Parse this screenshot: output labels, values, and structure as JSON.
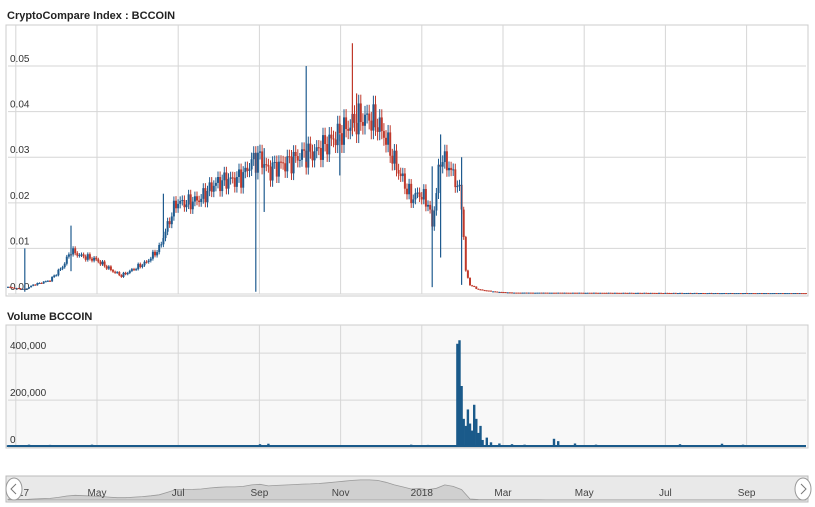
{
  "chart_data": {
    "type": "candlestick",
    "title": "CryptoCompare Index : BCCOIN",
    "volume_title": "Volume BCCOIN",
    "price_ylim": [
      0,
      0.059
    ],
    "price_ticks": [
      {
        "v": 0,
        "label": "0.00"
      },
      {
        "v": 0.01,
        "label": "0.01"
      },
      {
        "v": 0.02,
        "label": "0.02"
      },
      {
        "v": 0.03,
        "label": "0.03"
      },
      {
        "v": 0.04,
        "label": "0.04"
      },
      {
        "v": 0.05,
        "label": "0.05"
      }
    ],
    "volume_ylim": [
      0,
      520000
    ],
    "volume_ticks": [
      {
        "v": 0,
        "label": "0"
      },
      {
        "v": 200000,
        "label": "200,000"
      },
      {
        "v": 400000,
        "label": "400,000"
      }
    ],
    "x_ticks": [
      "May",
      "Jul",
      "Sep",
      "Nov",
      "2018",
      "Mar",
      "May",
      "Jul",
      "Sep"
    ],
    "x_clipped_label": "17",
    "grid": true,
    "up_color": "#1f5b8f",
    "down_color": "#c0392b",
    "volume_color": "#1a5a8a",
    "navigator_fill": "#d8d8d8",
    "price_series": [
      {
        "x": 0,
        "y": 0.0015
      },
      {
        "x": 4,
        "y": 0.001
      },
      {
        "x": 6,
        "y": 0.002
      },
      {
        "x": 10,
        "y": 0.003
      },
      {
        "x": 13,
        "y": 0.006
      },
      {
        "x": 15,
        "y": 0.0095
      },
      {
        "x": 17,
        "y": 0.0085
      },
      {
        "x": 21,
        "y": 0.0075
      },
      {
        "x": 25,
        "y": 0.005
      },
      {
        "x": 27,
        "y": 0.004
      },
      {
        "x": 30,
        "y": 0.0055
      },
      {
        "x": 33,
        "y": 0.007
      },
      {
        "x": 36,
        "y": 0.01
      },
      {
        "x": 38,
        "y": 0.015
      },
      {
        "x": 40,
        "y": 0.02
      },
      {
        "x": 43,
        "y": 0.02
      },
      {
        "x": 46,
        "y": 0.021
      },
      {
        "x": 49,
        "y": 0.024
      },
      {
        "x": 52,
        "y": 0.025
      },
      {
        "x": 54,
        "y": 0.025
      },
      {
        "x": 56,
        "y": 0.026
      },
      {
        "x": 58,
        "y": 0.029
      },
      {
        "x": 60,
        "y": 0.03
      },
      {
        "x": 62,
        "y": 0.027
      },
      {
        "x": 64,
        "y": 0.028
      },
      {
        "x": 67,
        "y": 0.029
      },
      {
        "x": 70,
        "y": 0.0305
      },
      {
        "x": 73,
        "y": 0.031
      },
      {
        "x": 76,
        "y": 0.033
      },
      {
        "x": 78,
        "y": 0.0345
      },
      {
        "x": 80,
        "y": 0.036
      },
      {
        "x": 82,
        "y": 0.0375
      },
      {
        "x": 84,
        "y": 0.0385
      },
      {
        "x": 86,
        "y": 0.0385
      },
      {
        "x": 88,
        "y": 0.0375
      },
      {
        "x": 90,
        "y": 0.034
      },
      {
        "x": 92,
        "y": 0.029
      },
      {
        "x": 94,
        "y": 0.025
      },
      {
        "x": 96,
        "y": 0.021
      },
      {
        "x": 98,
        "y": 0.022
      },
      {
        "x": 100,
        "y": 0.02
      },
      {
        "x": 101,
        "y": 0.015
      },
      {
        "x": 103,
        "y": 0.03
      },
      {
        "x": 105,
        "y": 0.028
      },
      {
        "x": 107,
        "y": 0.024
      },
      {
        "x": 108,
        "y": 0.02
      },
      {
        "x": 109,
        "y": 0.005
      },
      {
        "x": 110,
        "y": 0.002
      },
      {
        "x": 112,
        "y": 0.001
      },
      {
        "x": 116,
        "y": 0.0005
      },
      {
        "x": 120,
        "y": 0.0003
      },
      {
        "x": 170,
        "y": 0.0002
      },
      {
        "x": 190,
        "y": 0.0002
      }
    ],
    "spikes": [
      {
        "x": 4,
        "high": 0.01,
        "low": 0.0005
      },
      {
        "x": 15,
        "high": 0.015,
        "low": 0.005
      },
      {
        "x": 37,
        "high": 0.022,
        "low": 0.012
      },
      {
        "x": 59,
        "high": 0.031,
        "low": 0.0005
      },
      {
        "x": 61,
        "high": 0.032,
        "low": 0.018
      },
      {
        "x": 71,
        "high": 0.05,
        "low": 0.029
      },
      {
        "x": 79,
        "high": 0.035,
        "low": 0.026
      },
      {
        "x": 82,
        "high": 0.055,
        "low": 0.035
      },
      {
        "x": 83,
        "high": 0.044,
        "low": 0.036
      },
      {
        "x": 101,
        "high": 0.028,
        "low": 0.0015
      },
      {
        "x": 103,
        "high": 0.035,
        "low": 0.008
      },
      {
        "x": 108,
        "high": 0.03,
        "low": 0.002
      }
    ],
    "volume_series": [
      {
        "x": 107,
        "v": 440000
      },
      {
        "x": 107.5,
        "v": 455000
      },
      {
        "x": 108,
        "v": 260000
      },
      {
        "x": 108.5,
        "v": 120000
      },
      {
        "x": 109,
        "v": 90000
      },
      {
        "x": 109.5,
        "v": 160000
      },
      {
        "x": 110,
        "v": 100000
      },
      {
        "x": 110.5,
        "v": 70000
      },
      {
        "x": 111,
        "v": 180000
      },
      {
        "x": 111.5,
        "v": 120000
      },
      {
        "x": 112,
        "v": 60000
      },
      {
        "x": 112.5,
        "v": 90000
      },
      {
        "x": 113,
        "v": 30000
      },
      {
        "x": 114,
        "v": 40000
      },
      {
        "x": 115,
        "v": 20000
      },
      {
        "x": 117,
        "v": 15000
      },
      {
        "x": 120,
        "v": 12000
      },
      {
        "x": 123,
        "v": 10000
      },
      {
        "x": 130,
        "v": 35000
      },
      {
        "x": 131,
        "v": 25000
      },
      {
        "x": 135,
        "v": 15000
      },
      {
        "x": 140,
        "v": 10000
      },
      {
        "x": 150,
        "v": 8000
      },
      {
        "x": 160,
        "v": 12000
      },
      {
        "x": 170,
        "v": 14000
      },
      {
        "x": 175,
        "v": 10000
      },
      {
        "x": 0,
        "v": 8000
      },
      {
        "x": 5,
        "v": 10000
      },
      {
        "x": 10,
        "v": 9000
      },
      {
        "x": 20,
        "v": 10000
      },
      {
        "x": 28,
        "v": 8000
      },
      {
        "x": 60,
        "v": 12000
      },
      {
        "x": 62,
        "v": 14000
      },
      {
        "x": 70,
        "v": 7000
      },
      {
        "x": 96,
        "v": 10000
      },
      {
        "x": 100,
        "v": 9000
      }
    ],
    "x_domain": [
      0,
      190
    ]
  }
}
